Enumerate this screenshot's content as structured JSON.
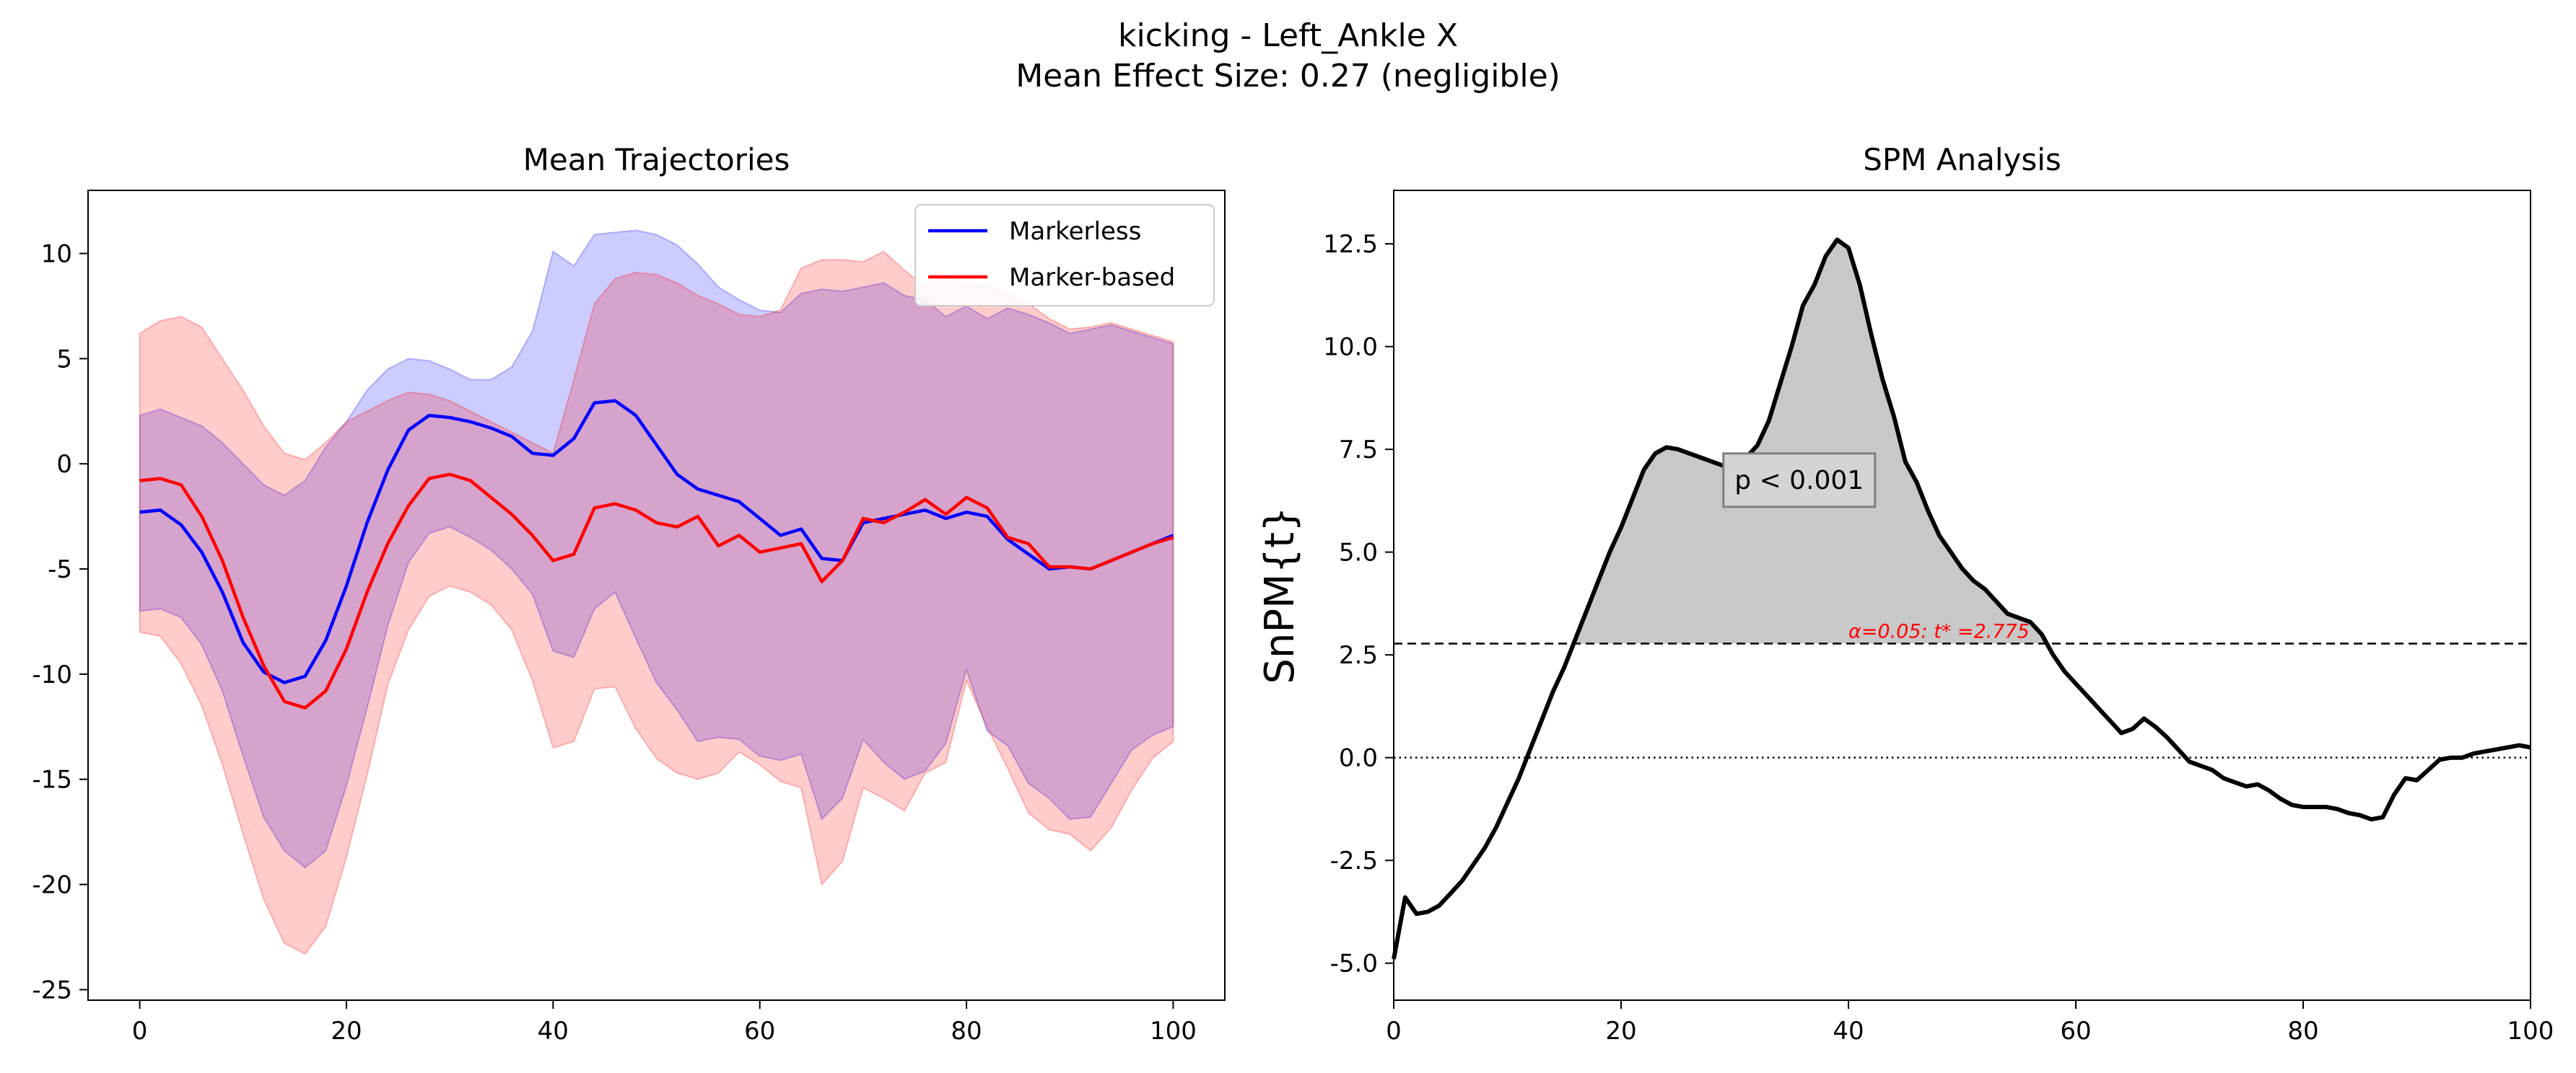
{
  "figure": {
    "title_line1": "kicking - Left_Ankle X",
    "title_line2": "Mean Effect Size: 0.27 (negligible)"
  },
  "colors": {
    "markerless": "#0000ff",
    "marker_based": "#ff0000",
    "markerless_fill": "#0000ff",
    "marker_based_fill": "#ff0000",
    "spm_line": "#000000",
    "cluster_fill": "#c8c8c8",
    "threshold_label": "#ff0000"
  },
  "chart_data": [
    {
      "type": "line",
      "title": "Mean Trajectories",
      "xlabel": "",
      "ylabel": "",
      "xlim": [
        -5,
        105
      ],
      "ylim": [
        -25.5,
        13
      ],
      "xticks": [
        0,
        20,
        40,
        60,
        80,
        100
      ],
      "yticks": [
        10,
        5,
        0,
        -5,
        -10,
        -15,
        -20,
        -25
      ],
      "grid": false,
      "legend": {
        "position": "top-right",
        "entries": [
          "Markerless",
          "Marker-based"
        ]
      },
      "x": [
        0,
        2,
        4,
        6,
        8,
        10,
        12,
        14,
        16,
        18,
        20,
        22,
        24,
        26,
        28,
        30,
        32,
        34,
        36,
        38,
        40,
        42,
        44,
        46,
        48,
        50,
        52,
        54,
        56,
        58,
        60,
        62,
        64,
        66,
        68,
        70,
        72,
        74,
        76,
        78,
        80,
        82,
        84,
        86,
        88,
        90,
        92,
        94,
        96,
        98,
        100
      ],
      "series": [
        {
          "name": "Markerless",
          "color": "#0000ff",
          "mean": [
            -2.3,
            -2.2,
            -2.9,
            -4.2,
            -6.1,
            -8.5,
            -9.9,
            -10.4,
            -10.1,
            -8.4,
            -5.8,
            -2.8,
            -0.3,
            1.6,
            2.3,
            2.2,
            2.0,
            1.7,
            1.3,
            0.5,
            0.4,
            1.2,
            2.9,
            3.0,
            2.3,
            0.9,
            -0.5,
            -1.2,
            -1.5,
            -1.8,
            -2.6,
            -3.4,
            -3.1,
            -4.5,
            -4.6,
            -2.8,
            -2.6,
            -2.4,
            -2.2,
            -2.6,
            -2.3,
            -2.5,
            -3.6,
            -4.3,
            -5.0,
            -4.9,
            -5.0,
            -4.6,
            -4.2,
            -3.8,
            -3.4
          ],
          "upper": [
            2.3,
            2.6,
            2.2,
            1.8,
            1.0,
            0.0,
            -1.0,
            -1.5,
            -0.8,
            0.8,
            2.0,
            3.5,
            4.5,
            5.0,
            4.9,
            4.5,
            4.0,
            4.0,
            4.6,
            6.3,
            10.1,
            9.4,
            10.9,
            11.0,
            11.1,
            10.9,
            10.4,
            9.5,
            8.4,
            7.8,
            7.3,
            7.2,
            8.1,
            8.3,
            8.2,
            8.4,
            8.6,
            8.0,
            7.8,
            7.0,
            7.5,
            6.9,
            7.4,
            7.1,
            6.7,
            6.2,
            6.4,
            6.6,
            6.3,
            6.0,
            5.7
          ],
          "lower": [
            -7.0,
            -6.9,
            -7.3,
            -8.6,
            -10.8,
            -13.9,
            -16.8,
            -18.4,
            -19.2,
            -18.4,
            -15.3,
            -11.6,
            -7.7,
            -4.7,
            -3.3,
            -3.0,
            -3.5,
            -4.1,
            -5.0,
            -6.2,
            -8.9,
            -9.2,
            -6.9,
            -6.1,
            -8.3,
            -10.4,
            -11.7,
            -13.2,
            -13.0,
            -13.1,
            -13.9,
            -14.1,
            -13.8,
            -16.9,
            -15.9,
            -13.1,
            -14.2,
            -15.0,
            -14.6,
            -13.3,
            -9.8,
            -12.7,
            -13.4,
            -15.2,
            -15.9,
            -16.9,
            -16.8,
            -15.2,
            -13.6,
            -12.9,
            -12.5
          ]
        },
        {
          "name": "Marker-based",
          "color": "#ff0000",
          "mean": [
            -0.8,
            -0.7,
            -1.0,
            -2.5,
            -4.6,
            -7.3,
            -9.6,
            -11.3,
            -11.6,
            -10.8,
            -8.8,
            -6.1,
            -3.8,
            -2.0,
            -0.7,
            -0.5,
            -0.8,
            -1.6,
            -2.4,
            -3.4,
            -4.6,
            -4.3,
            -2.1,
            -1.9,
            -2.2,
            -2.8,
            -3.0,
            -2.5,
            -3.9,
            -3.4,
            -4.2,
            -4.0,
            -3.8,
            -5.6,
            -4.6,
            -2.6,
            -2.8,
            -2.3,
            -1.7,
            -2.4,
            -1.6,
            -2.1,
            -3.5,
            -3.8,
            -4.9,
            -4.9,
            -5.0,
            -4.6,
            -4.2,
            -3.8,
            -3.5
          ],
          "upper": [
            6.2,
            6.8,
            7.0,
            6.5,
            5.0,
            3.5,
            1.8,
            0.5,
            0.2,
            1.0,
            2.0,
            2.5,
            3.0,
            3.4,
            3.3,
            3.0,
            2.5,
            2.0,
            1.5,
            1.0,
            0.5,
            4.0,
            7.6,
            8.8,
            9.1,
            9.0,
            8.6,
            8.0,
            7.6,
            7.1,
            7.0,
            7.3,
            9.3,
            9.7,
            9.7,
            9.6,
            10.1,
            9.2,
            8.4,
            9.0,
            8.5,
            8.5,
            8.1,
            7.6,
            6.9,
            6.4,
            6.5,
            6.7,
            6.4,
            6.1,
            5.8
          ],
          "lower": [
            -8.0,
            -8.2,
            -9.5,
            -11.5,
            -14.3,
            -17.6,
            -20.7,
            -22.8,
            -23.3,
            -22.0,
            -18.7,
            -14.8,
            -10.5,
            -7.9,
            -6.3,
            -5.8,
            -6.1,
            -6.7,
            -7.9,
            -10.3,
            -13.5,
            -13.2,
            -10.7,
            -10.6,
            -12.6,
            -14.0,
            -14.7,
            -15.0,
            -14.7,
            -13.7,
            -14.3,
            -15.1,
            -15.4,
            -20.0,
            -18.9,
            -15.4,
            -15.9,
            -16.5,
            -14.7,
            -14.2,
            -10.3,
            -12.5,
            -14.5,
            -16.6,
            -17.4,
            -17.6,
            -18.4,
            -17.3,
            -15.5,
            -14.0,
            -13.2
          ]
        }
      ]
    },
    {
      "type": "line",
      "title": "SPM Analysis",
      "xlabel": "",
      "ylabel": "SnPM{t}",
      "xlim": [
        0,
        100
      ],
      "ylim": [
        -5.9,
        13.8
      ],
      "xticks": [
        0,
        20,
        40,
        60,
        80,
        100
      ],
      "yticks": [
        12.5,
        10.0,
        7.5,
        5.0,
        2.5,
        0.0,
        -2.5,
        -5.0
      ],
      "grid": false,
      "threshold": {
        "value": 2.775,
        "label": "α=0.05:  t* =2.775"
      },
      "zero_line": 0.0,
      "cluster": {
        "x_start": 16,
        "x_end": 57,
        "p_label": "p < 0.001"
      },
      "x": [
        0,
        1,
        2,
        3,
        4,
        5,
        6,
        7,
        8,
        9,
        10,
        11,
        12,
        13,
        14,
        15,
        16,
        17,
        18,
        19,
        20,
        21,
        22,
        23,
        24,
        25,
        26,
        27,
        28,
        29,
        30,
        31,
        32,
        33,
        34,
        35,
        36,
        37,
        38,
        39,
        40,
        41,
        42,
        43,
        44,
        45,
        46,
        47,
        48,
        49,
        50,
        51,
        52,
        53,
        54,
        55,
        56,
        57,
        58,
        59,
        60,
        61,
        62,
        63,
        64,
        65,
        66,
        67,
        68,
        69,
        70,
        71,
        72,
        73,
        74,
        75,
        76,
        77,
        78,
        79,
        80,
        81,
        82,
        83,
        84,
        85,
        86,
        87,
        88,
        89,
        90,
        91,
        92,
        93,
        94,
        95,
        96,
        97,
        98,
        99,
        100
      ],
      "values": [
        -4.9,
        -3.4,
        -3.8,
        -3.75,
        -3.6,
        -3.3,
        -3.0,
        -2.6,
        -2.2,
        -1.7,
        -1.1,
        -0.5,
        0.2,
        0.9,
        1.6,
        2.2,
        2.9,
        3.6,
        4.3,
        5.0,
        5.6,
        6.3,
        7.0,
        7.4,
        7.55,
        7.5,
        7.4,
        7.3,
        7.2,
        7.1,
        7.0,
        7.3,
        7.6,
        8.2,
        9.1,
        10.0,
        11.0,
        11.5,
        12.2,
        12.6,
        12.4,
        11.5,
        10.3,
        9.2,
        8.3,
        7.2,
        6.7,
        6.0,
        5.4,
        5.0,
        4.6,
        4.3,
        4.1,
        3.8,
        3.5,
        3.4,
        3.3,
        3.0,
        2.5,
        2.1,
        1.8,
        1.5,
        1.2,
        0.9,
        0.6,
        0.7,
        0.95,
        0.75,
        0.5,
        0.2,
        -0.1,
        -0.2,
        -0.3,
        -0.5,
        -0.6,
        -0.7,
        -0.65,
        -0.8,
        -1.0,
        -1.15,
        -1.2,
        -1.2,
        -1.2,
        -1.25,
        -1.35,
        -1.4,
        -1.5,
        -1.45,
        -0.9,
        -0.5,
        -0.55,
        -0.3,
        -0.05,
        0.0,
        0.0,
        0.1,
        0.15,
        0.2,
        0.25,
        0.3,
        0.25
      ]
    }
  ]
}
